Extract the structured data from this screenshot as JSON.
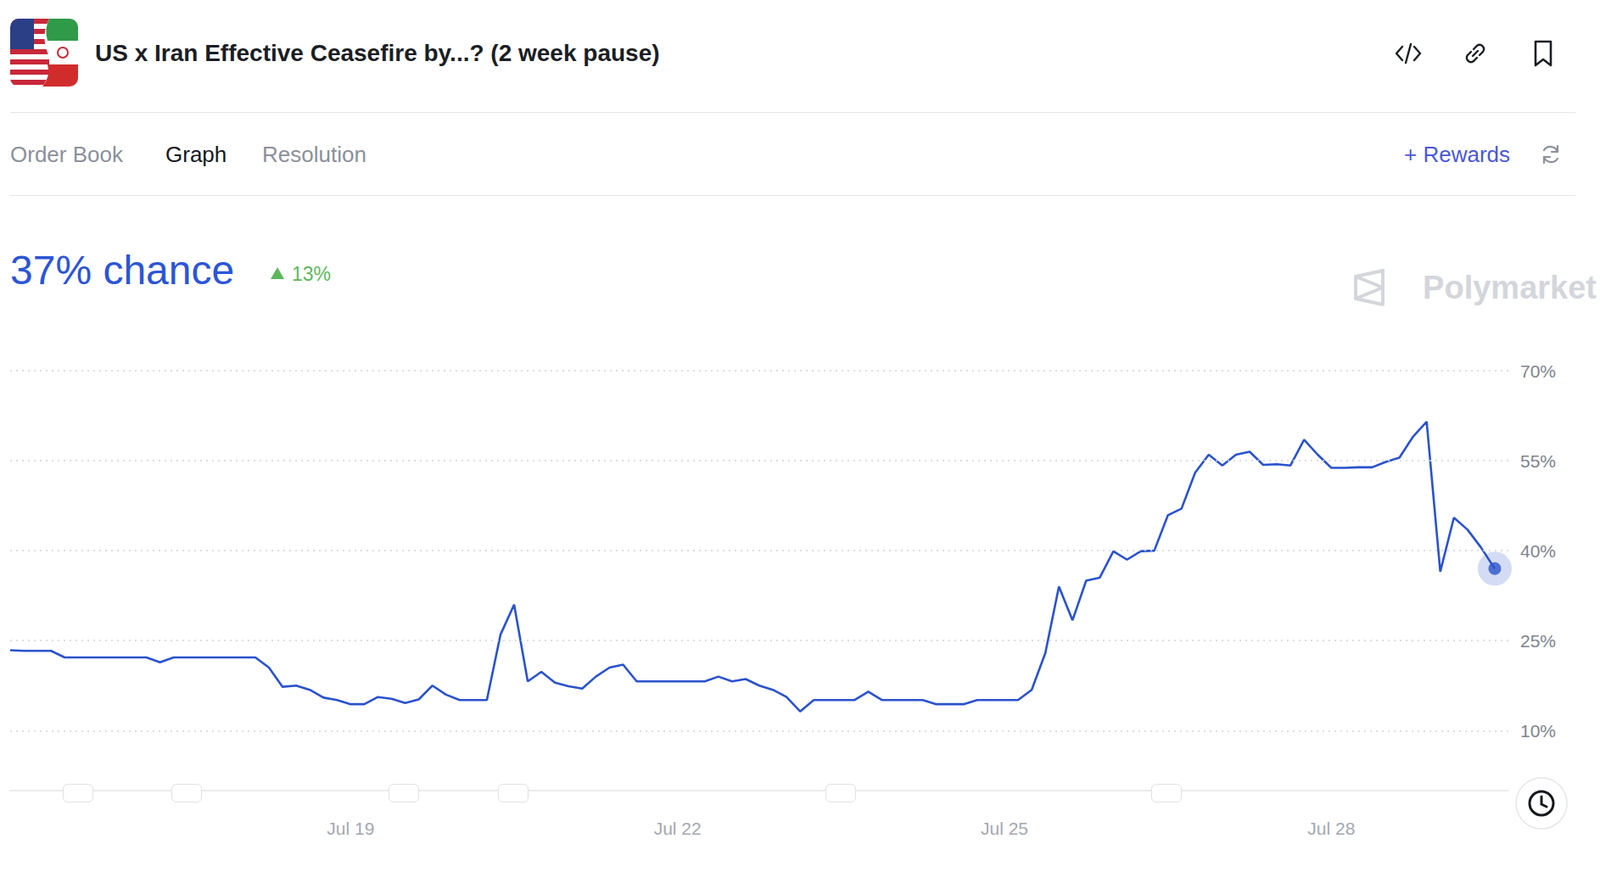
{
  "page": {
    "title": "US x Iran Effective Ceasefire by...? (2 week pause)",
    "tabs": [
      "Order Book",
      "Graph",
      "Resolution"
    ],
    "active_tab": "Graph",
    "rewards": "+ Rewards",
    "headline": "37% chance",
    "change": "13%",
    "watermark": "Polymarket"
  },
  "chart_data": {
    "type": "line",
    "categories": [
      null,
      null,
      null,
      null,
      null,
      null,
      null,
      null,
      null,
      null,
      null,
      null,
      null,
      null,
      null,
      null,
      null,
      null,
      null,
      null,
      null,
      null,
      null,
      null,
      null,
      "Jul 19",
      null,
      null,
      null,
      null,
      null,
      null,
      null,
      null,
      null,
      null,
      null,
      null,
      null,
      null,
      null,
      null,
      null,
      null,
      null,
      null,
      null,
      null,
      null,
      "Jul 22",
      null,
      null,
      null,
      null,
      null,
      null,
      null,
      null,
      null,
      null,
      null,
      null,
      null,
      null,
      null,
      null,
      null,
      null,
      null,
      null,
      null,
      null,
      null,
      "Jul 25",
      null,
      null,
      null,
      null,
      null,
      null,
      null,
      null,
      null,
      null,
      null,
      null,
      null,
      null,
      null,
      null,
      null,
      null,
      null,
      null,
      null,
      null,
      null,
      "Jul 28",
      null,
      null,
      null,
      null,
      null,
      null,
      null,
      null,
      null,
      null,
      null,
      null,
      null
    ],
    "values": [
      23.4,
      23.3,
      23.3,
      23.3,
      22.2,
      22.2,
      22.2,
      22.2,
      22.2,
      22.2,
      22.2,
      21.4,
      22.2,
      22.2,
      22.2,
      22.2,
      22.2,
      22.2,
      22.2,
      20.5,
      17.3,
      17.5,
      16.8,
      15.5,
      15.1,
      14.4,
      14.4,
      15.6,
      15.3,
      14.6,
      15.2,
      17.5,
      16.0,
      15.1,
      15.1,
      15.1,
      26.0,
      31.0,
      18.2,
      19.8,
      18.0,
      17.4,
      17.0,
      19.0,
      20.5,
      21.0,
      18.2,
      18.2,
      18.2,
      18.2,
      18.2,
      18.2,
      19.0,
      18.2,
      18.6,
      17.5,
      16.8,
      15.6,
      13.2,
      15.1,
      15.1,
      15.1,
      15.1,
      16.5,
      15.1,
      15.1,
      15.1,
      15.1,
      14.4,
      14.4,
      14.4,
      15.1,
      15.1,
      15.1,
      15.1,
      16.8,
      22.9,
      34.0,
      28.4,
      35.0,
      35.5,
      39.9,
      38.5,
      39.9,
      40.0,
      45.9,
      47.0,
      53.0,
      56.0,
      54.2,
      56.0,
      56.5,
      54.3,
      54.4,
      54.2,
      58.5,
      56.0,
      53.8,
      53.8,
      53.9,
      53.9,
      54.8,
      55.5,
      59.0,
      61.5,
      36.5,
      45.5,
      43.5,
      40.5,
      37.0,
      null
    ],
    "color": "#2a52cc",
    "ylim": [
      0,
      70
    ],
    "yticks": [
      {
        "value": 10,
        "label": "10%"
      },
      {
        "value": 25,
        "label": "25%"
      },
      {
        "value": 40,
        "label": "40%"
      },
      {
        "value": 55,
        "label": "55%"
      },
      {
        "value": 70,
        "label": "70%"
      }
    ],
    "grid": true
  }
}
